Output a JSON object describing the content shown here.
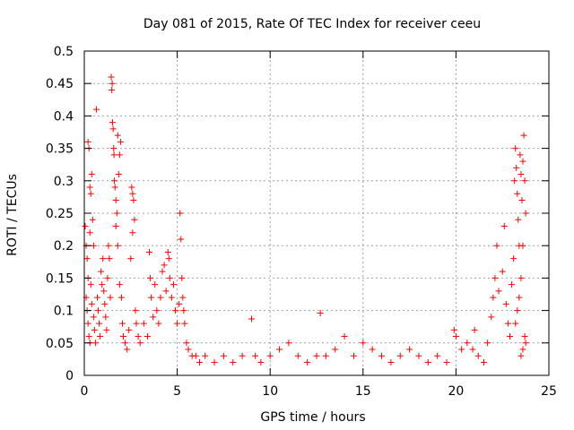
{
  "chart_data": {
    "type": "scatter",
    "title": "Day 081 of 2015, Rate Of TEC Index for receiver ceeu",
    "xlabel": "GPS time / hours",
    "ylabel": "ROTI / TECUs",
    "xlim": [
      0,
      25
    ],
    "ylim": [
      0,
      0.5
    ],
    "xticks": [
      "0",
      "5",
      "10",
      "15",
      "20",
      "25"
    ],
    "yticks": [
      "0",
      "0.05",
      "0.1",
      "0.15",
      "0.2",
      "0.25",
      "0.3",
      "0.35",
      "0.4",
      "0.45",
      "0.5"
    ],
    "grid": true,
    "marker": "+",
    "color": "#ff0000",
    "points": [
      [
        0.05,
        0.23
      ],
      [
        0.1,
        0.2
      ],
      [
        0.15,
        0.18
      ],
      [
        0.2,
        0.15
      ],
      [
        0.1,
        0.12
      ],
      [
        0.15,
        0.1
      ],
      [
        0.2,
        0.08
      ],
      [
        0.25,
        0.06
      ],
      [
        0.3,
        0.05
      ],
      [
        0.2,
        0.36
      ],
      [
        0.25,
        0.35
      ],
      [
        0.3,
        0.29
      ],
      [
        0.35,
        0.28
      ],
      [
        0.4,
        0.31
      ],
      [
        0.45,
        0.24
      ],
      [
        0.5,
        0.2
      ],
      [
        0.3,
        0.22
      ],
      [
        0.35,
        0.14
      ],
      [
        0.4,
        0.11
      ],
      [
        0.5,
        0.09
      ],
      [
        0.55,
        0.07
      ],
      [
        0.6,
        0.05
      ],
      [
        0.65,
        0.41
      ],
      [
        0.7,
        0.12
      ],
      [
        0.75,
        0.1
      ],
      [
        0.8,
        0.08
      ],
      [
        0.85,
        0.06
      ],
      [
        0.9,
        0.16
      ],
      [
        0.95,
        0.14
      ],
      [
        1.0,
        0.18
      ],
      [
        1.05,
        0.13
      ],
      [
        1.1,
        0.11
      ],
      [
        1.15,
        0.09
      ],
      [
        1.2,
        0.07
      ],
      [
        1.25,
        0.15
      ],
      [
        1.3,
        0.2
      ],
      [
        1.35,
        0.18
      ],
      [
        1.4,
        0.12
      ],
      [
        1.45,
        0.46
      ],
      [
        1.5,
        0.45
      ],
      [
        1.48,
        0.44
      ],
      [
        1.52,
        0.39
      ],
      [
        1.55,
        0.38
      ],
      [
        1.58,
        0.35
      ],
      [
        1.6,
        0.34
      ],
      [
        1.62,
        0.3
      ],
      [
        1.65,
        0.29
      ],
      [
        1.7,
        0.27
      ],
      [
        1.75,
        0.25
      ],
      [
        1.8,
        0.37
      ],
      [
        1.85,
        0.31
      ],
      [
        1.9,
        0.34
      ],
      [
        1.95,
        0.36
      ],
      [
        1.7,
        0.23
      ],
      [
        1.8,
        0.2
      ],
      [
        1.9,
        0.14
      ],
      [
        2.0,
        0.12
      ],
      [
        2.05,
        0.08
      ],
      [
        2.1,
        0.06
      ],
      [
        2.2,
        0.05
      ],
      [
        2.3,
        0.04
      ],
      [
        2.4,
        0.07
      ],
      [
        2.5,
        0.18
      ],
      [
        2.55,
        0.29
      ],
      [
        2.6,
        0.28
      ],
      [
        2.65,
        0.27
      ],
      [
        2.7,
        0.24
      ],
      [
        2.6,
        0.22
      ],
      [
        2.75,
        0.1
      ],
      [
        2.8,
        0.08
      ],
      [
        2.9,
        0.06
      ],
      [
        3.0,
        0.05
      ],
      [
        3.2,
        0.08
      ],
      [
        3.4,
        0.06
      ],
      [
        3.5,
        0.19
      ],
      [
        3.55,
        0.15
      ],
      [
        3.6,
        0.12
      ],
      [
        3.7,
        0.09
      ],
      [
        3.8,
        0.14
      ],
      [
        3.9,
        0.1
      ],
      [
        4.0,
        0.08
      ],
      [
        4.1,
        0.12
      ],
      [
        4.2,
        0.16
      ],
      [
        4.3,
        0.17
      ],
      [
        4.4,
        0.13
      ],
      [
        4.5,
        0.19
      ],
      [
        4.55,
        0.18
      ],
      [
        4.6,
        0.15
      ],
      [
        4.7,
        0.12
      ],
      [
        4.8,
        0.14
      ],
      [
        4.9,
        0.1
      ],
      [
        5.0,
        0.08
      ],
      [
        5.1,
        0.11
      ],
      [
        5.15,
        0.25
      ],
      [
        5.2,
        0.21
      ],
      [
        5.25,
        0.15
      ],
      [
        5.3,
        0.12
      ],
      [
        5.35,
        0.1
      ],
      [
        5.4,
        0.08
      ],
      [
        5.5,
        0.05
      ],
      [
        5.6,
        0.04
      ],
      [
        5.8,
        0.03
      ],
      [
        6.0,
        0.03
      ],
      [
        6.2,
        0.02
      ],
      [
        6.5,
        0.03
      ],
      [
        7.0,
        0.02
      ],
      [
        7.5,
        0.03
      ],
      [
        8.0,
        0.02
      ],
      [
        8.5,
        0.03
      ],
      [
        9.0,
        0.087
      ],
      [
        9.2,
        0.03
      ],
      [
        9.5,
        0.02
      ],
      [
        10.0,
        0.03
      ],
      [
        10.5,
        0.04
      ],
      [
        11.0,
        0.05
      ],
      [
        11.5,
        0.03
      ],
      [
        12.0,
        0.02
      ],
      [
        12.5,
        0.03
      ],
      [
        12.7,
        0.096
      ],
      [
        13.0,
        0.03
      ],
      [
        13.5,
        0.04
      ],
      [
        14.0,
        0.06
      ],
      [
        14.5,
        0.03
      ],
      [
        15.0,
        0.05
      ],
      [
        15.5,
        0.04
      ],
      [
        16.0,
        0.03
      ],
      [
        16.5,
        0.02
      ],
      [
        17.0,
        0.03
      ],
      [
        17.5,
        0.04
      ],
      [
        18.0,
        0.03
      ],
      [
        18.5,
        0.02
      ],
      [
        19.0,
        0.03
      ],
      [
        19.5,
        0.02
      ],
      [
        19.9,
        0.07
      ],
      [
        20.0,
        0.06
      ],
      [
        20.3,
        0.04
      ],
      [
        20.6,
        0.05
      ],
      [
        20.9,
        0.04
      ],
      [
        21.0,
        0.07
      ],
      [
        21.2,
        0.03
      ],
      [
        21.5,
        0.02
      ],
      [
        21.7,
        0.05
      ],
      [
        21.9,
        0.09
      ],
      [
        22.0,
        0.12
      ],
      [
        22.1,
        0.15
      ],
      [
        22.2,
        0.2
      ],
      [
        22.3,
        0.13
      ],
      [
        22.5,
        0.16
      ],
      [
        22.6,
        0.23
      ],
      [
        22.7,
        0.11
      ],
      [
        22.8,
        0.08
      ],
      [
        22.9,
        0.06
      ],
      [
        23.0,
        0.14
      ],
      [
        23.1,
        0.18
      ],
      [
        23.15,
        0.3
      ],
      [
        23.2,
        0.35
      ],
      [
        23.25,
        0.32
      ],
      [
        23.3,
        0.28
      ],
      [
        23.35,
        0.24
      ],
      [
        23.4,
        0.2
      ],
      [
        23.45,
        0.34
      ],
      [
        23.5,
        0.31
      ],
      [
        23.55,
        0.27
      ],
      [
        23.6,
        0.33
      ],
      [
        23.65,
        0.37
      ],
      [
        23.7,
        0.3
      ],
      [
        23.75,
        0.25
      ],
      [
        23.6,
        0.2
      ],
      [
        23.5,
        0.15
      ],
      [
        23.4,
        0.12
      ],
      [
        23.3,
        0.1
      ],
      [
        23.2,
        0.08
      ],
      [
        23.7,
        0.06
      ],
      [
        23.75,
        0.05
      ],
      [
        23.6,
        0.04
      ],
      [
        23.5,
        0.03
      ]
    ]
  }
}
